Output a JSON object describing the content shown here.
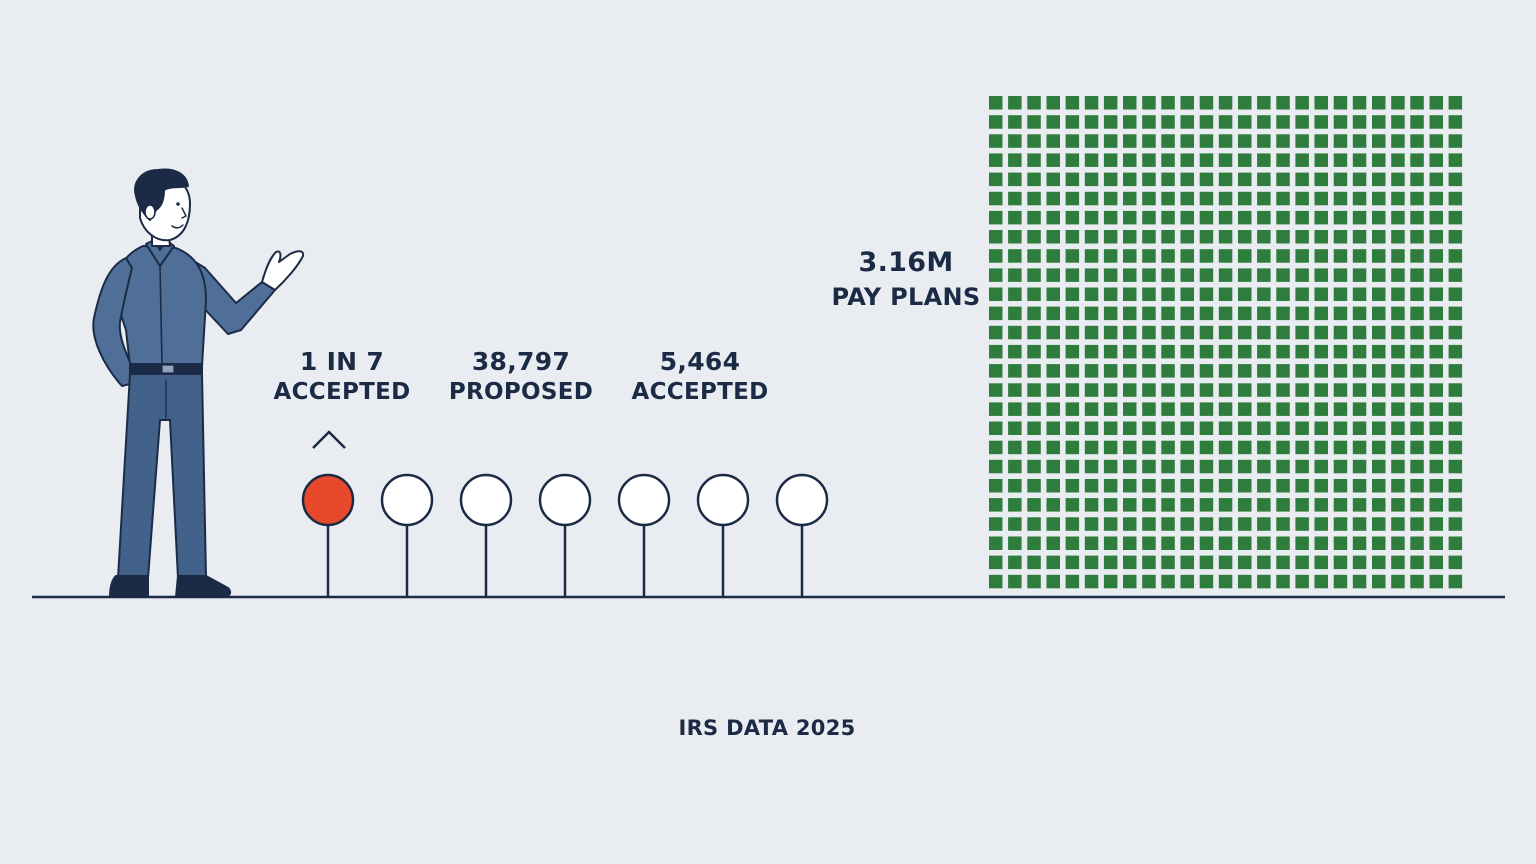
{
  "ratio_label": {
    "line1": "1 IN 7",
    "line2": "ACCEPTED"
  },
  "proposed_label": {
    "line1": "38,797",
    "line2": "PROPOSED"
  },
  "accepted_label": {
    "line1": "5,464",
    "line2": "ACCEPTED"
  },
  "payplans_label": {
    "line1": "3.16M",
    "line2": "PAY PLANS"
  },
  "source": "IRS DATA 2025",
  "pins": {
    "total": 7,
    "highlighted": 1
  },
  "grid": {
    "cols": 25,
    "rows": 26
  },
  "colors": {
    "background": "#e9edf2",
    "ink": "#1c2b45",
    "highlight": "#e8492a",
    "grid_square": "#2f7d3c",
    "shirt": "#4f6f99",
    "pants": "#42628c"
  },
  "icons": [
    "person-illustration",
    "caret-up-icon"
  ]
}
